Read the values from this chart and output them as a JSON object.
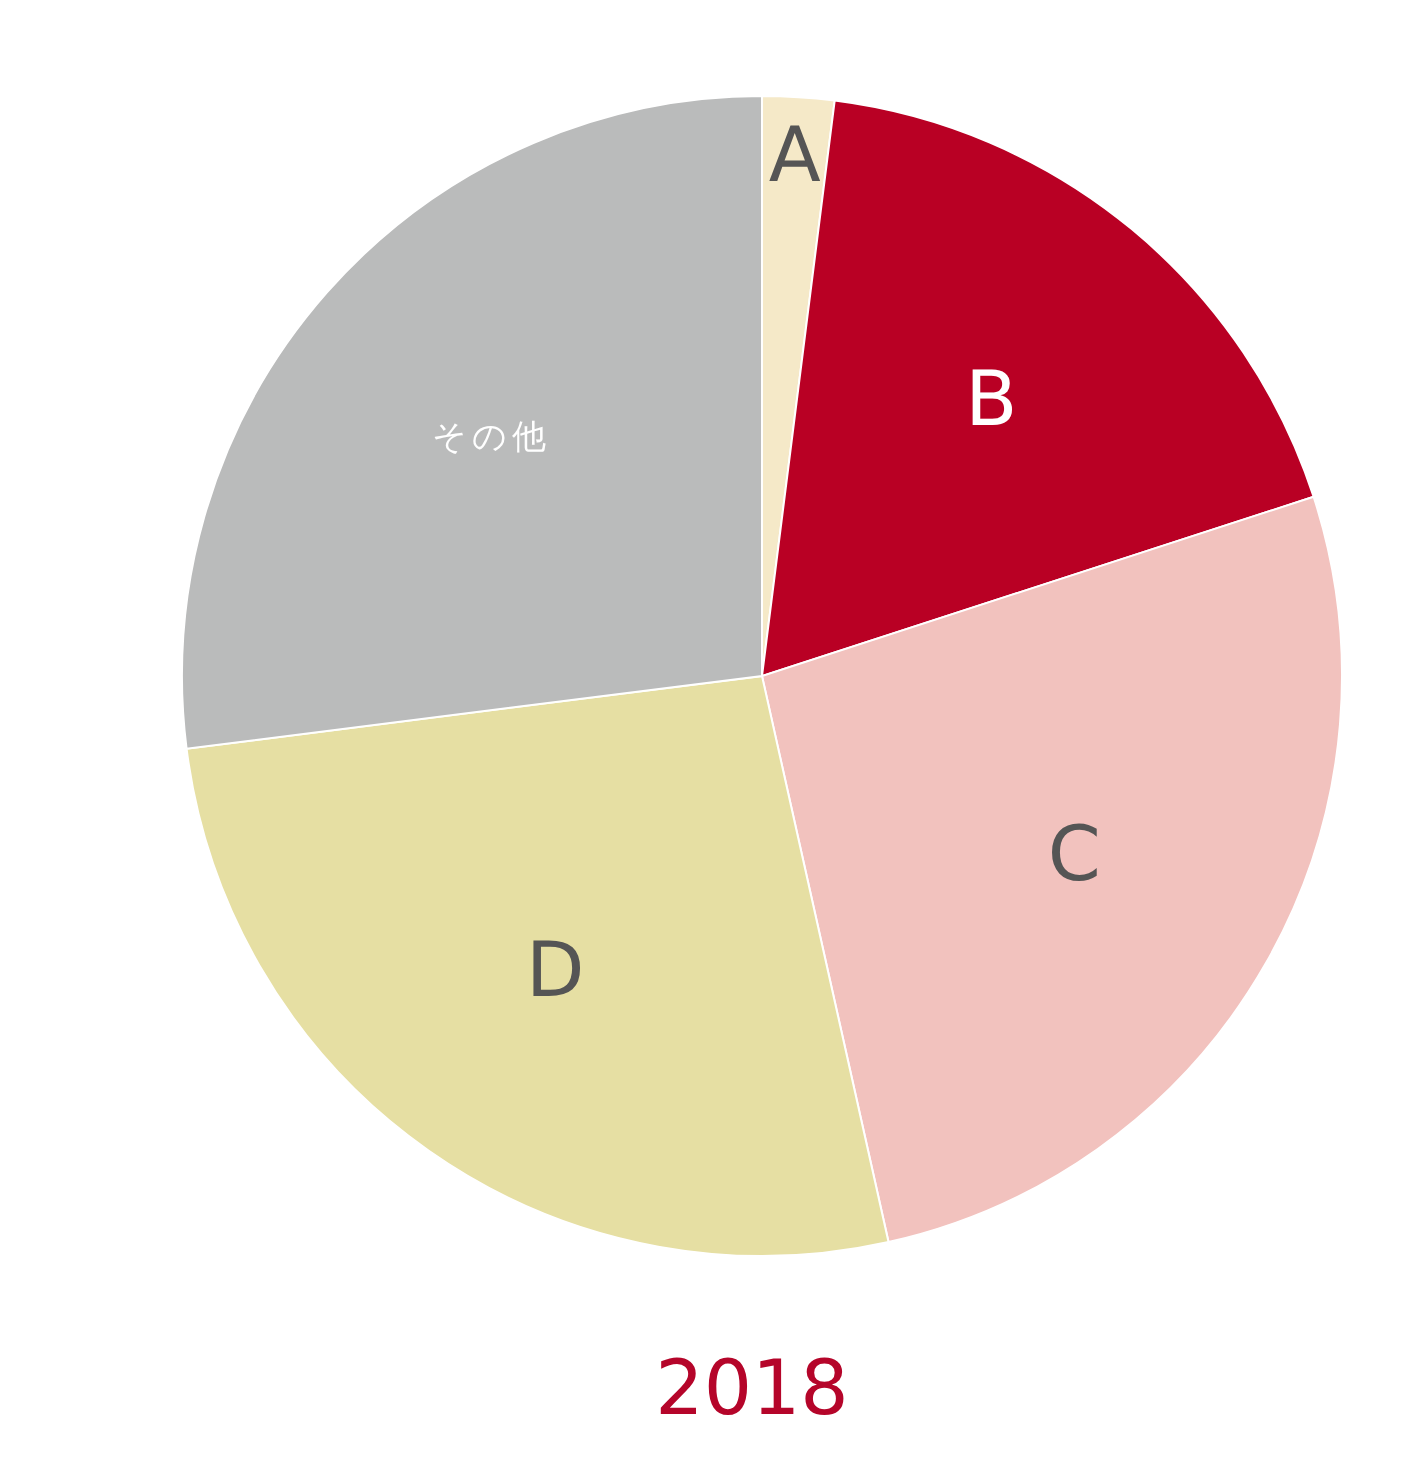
{
  "chart_data": {
    "type": "pie",
    "title": "2018",
    "categories": [
      "A",
      "B",
      "C",
      "D",
      "その他"
    ],
    "values": [
      2,
      18,
      26.5,
      26.5,
      27
    ],
    "colors": [
      "#f5e9c8",
      "#b90024",
      "#f2c2be",
      "#e6dfa3",
      "#babbbb"
    ],
    "legend": false
  }
}
